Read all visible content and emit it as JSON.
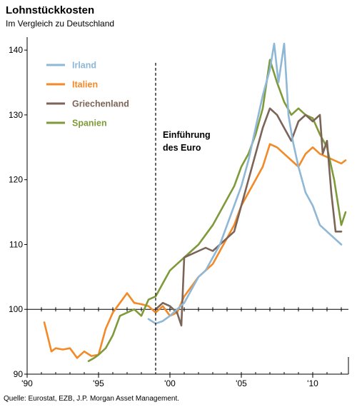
{
  "chart_data": {
    "type": "line",
    "title": "Lohnstückkosten",
    "subtitle": "Im Vergleich zu Deutschland",
    "source": "Quelle: Eurostat, EZB, J.P. Morgan Asset Management.",
    "xlim": [
      1990,
      2012.5
    ],
    "ylim": [
      90,
      142
    ],
    "xticks": [
      {
        "value": 1990,
        "label": "'90"
      },
      {
        "value": 1995,
        "label": "'95"
      },
      {
        "value": 2000,
        "label": "'00"
      },
      {
        "value": 2005,
        "label": "'05"
      },
      {
        "value": 2010,
        "label": "'10"
      }
    ],
    "yticks": [
      90,
      100,
      110,
      120,
      130,
      140
    ],
    "reference_line": 100,
    "annotation": {
      "lines": [
        "Einführung",
        "des Euro"
      ],
      "x": 1999
    }
  },
  "legend": [
    {
      "key": "irland",
      "label": "Irland"
    },
    {
      "key": "italien",
      "label": "Italien"
    },
    {
      "key": "griechenland",
      "label": "Griechenland"
    },
    {
      "key": "spanien",
      "label": "Spanien"
    }
  ],
  "colors": {
    "irland": "#8fb7d6",
    "italien": "#f28a28",
    "griechenland": "#7b6458",
    "spanien": "#7f9a3a"
  },
  "series_data": {
    "irland": [
      [
        1998.5,
        98.5
      ],
      [
        1999,
        97.8
      ],
      [
        1999.5,
        98.2
      ],
      [
        2000,
        99
      ],
      [
        2000.5,
        100
      ],
      [
        2001,
        101
      ],
      [
        2001.5,
        103
      ],
      [
        2002,
        105
      ],
      [
        2002.5,
        106
      ],
      [
        2003,
        108
      ],
      [
        2003.5,
        110
      ],
      [
        2004,
        113
      ],
      [
        2004.5,
        116
      ],
      [
        2005,
        119
      ],
      [
        2005.5,
        123
      ],
      [
        2006,
        128
      ],
      [
        2006.5,
        133
      ],
      [
        2007,
        137
      ],
      [
        2007.3,
        141
      ],
      [
        2007.6,
        135
      ],
      [
        2008,
        141
      ],
      [
        2008.3,
        130
      ],
      [
        2008.6,
        126
      ],
      [
        2009,
        122
      ],
      [
        2009.5,
        118
      ],
      [
        2010,
        116
      ],
      [
        2010.5,
        113
      ],
      [
        2011,
        112
      ],
      [
        2011.5,
        111
      ],
      [
        2012,
        110
      ]
    ],
    "italien": [
      [
        1991.2,
        98
      ],
      [
        1991.7,
        93.5
      ],
      [
        1992,
        94
      ],
      [
        1992.5,
        93.8
      ],
      [
        1993,
        94
      ],
      [
        1993.5,
        92.5
      ],
      [
        1994,
        93.5
      ],
      [
        1994.5,
        92.8
      ],
      [
        1995,
        93
      ],
      [
        1995.5,
        97
      ],
      [
        1996,
        99.5
      ],
      [
        1996.5,
        101
      ],
      [
        1997,
        102.5
      ],
      [
        1997.5,
        101
      ],
      [
        1998,
        100.8
      ],
      [
        1998.5,
        100.5
      ],
      [
        1999,
        99.5
      ],
      [
        1999.5,
        100.5
      ],
      [
        2000,
        99
      ],
      [
        2000.5,
        99.5
      ],
      [
        2001,
        102
      ],
      [
        2001.5,
        103.5
      ],
      [
        2002,
        105
      ],
      [
        2002.5,
        106
      ],
      [
        2003,
        107
      ],
      [
        2003.5,
        109
      ],
      [
        2004,
        111
      ],
      [
        2004.5,
        113
      ],
      [
        2005,
        116
      ],
      [
        2005.5,
        118
      ],
      [
        2006,
        120
      ],
      [
        2006.5,
        122
      ],
      [
        2007,
        125.5
      ],
      [
        2007.5,
        125
      ],
      [
        2008,
        124
      ],
      [
        2008.5,
        123
      ],
      [
        2009,
        122
      ],
      [
        2009.5,
        124
      ],
      [
        2010,
        125
      ],
      [
        2010.5,
        124
      ],
      [
        2011,
        123.5
      ],
      [
        2011.5,
        123
      ],
      [
        2012,
        122.5
      ],
      [
        2012.3,
        123
      ]
    ],
    "griechenland": [
      [
        1999,
        100
      ],
      [
        1999.5,
        101
      ],
      [
        2000,
        100.5
      ],
      [
        2000.5,
        99.5
      ],
      [
        2000.8,
        97.5
      ],
      [
        2001,
        108
      ],
      [
        2001.5,
        108.5
      ],
      [
        2002,
        109
      ],
      [
        2002.5,
        109.5
      ],
      [
        2003,
        109
      ],
      [
        2003.5,
        110
      ],
      [
        2004,
        111
      ],
      [
        2004.5,
        112
      ],
      [
        2005,
        116
      ],
      [
        2005.5,
        120
      ],
      [
        2006,
        124
      ],
      [
        2006.5,
        128
      ],
      [
        2007,
        131
      ],
      [
        2007.5,
        130
      ],
      [
        2008,
        128
      ],
      [
        2008.5,
        126
      ],
      [
        2009,
        129
      ],
      [
        2009.5,
        130
      ],
      [
        2010,
        129
      ],
      [
        2010.5,
        130
      ],
      [
        2010.7,
        124
      ],
      [
        2011,
        126
      ],
      [
        2011.3,
        118
      ],
      [
        2011.6,
        112
      ],
      [
        2012,
        112
      ]
    ],
    "spanien": [
      [
        1994.3,
        92
      ],
      [
        1994.7,
        92.5
      ],
      [
        1995,
        93
      ],
      [
        1995.5,
        94
      ],
      [
        1996,
        96
      ],
      [
        1996.5,
        99
      ],
      [
        1997,
        99.5
      ],
      [
        1997.5,
        100
      ],
      [
        1998,
        99
      ],
      [
        1998.5,
        101.5
      ],
      [
        1999,
        102
      ],
      [
        1999.5,
        104
      ],
      [
        2000,
        106
      ],
      [
        2000.5,
        107
      ],
      [
        2001,
        108
      ],
      [
        2001.5,
        109
      ],
      [
        2002,
        110
      ],
      [
        2002.5,
        111.5
      ],
      [
        2003,
        113
      ],
      [
        2003.5,
        115
      ],
      [
        2004,
        117
      ],
      [
        2004.5,
        119
      ],
      [
        2005,
        122
      ],
      [
        2005.5,
        124
      ],
      [
        2006,
        127
      ],
      [
        2006.5,
        131
      ],
      [
        2007,
        138.5
      ],
      [
        2007.5,
        135
      ],
      [
        2008,
        132
      ],
      [
        2008.5,
        130
      ],
      [
        2009,
        131
      ],
      [
        2009.5,
        130
      ],
      [
        2010,
        129.5
      ],
      [
        2010.5,
        127
      ],
      [
        2011,
        125
      ],
      [
        2011.5,
        120
      ],
      [
        2012,
        113
      ],
      [
        2012.3,
        115
      ]
    ]
  }
}
